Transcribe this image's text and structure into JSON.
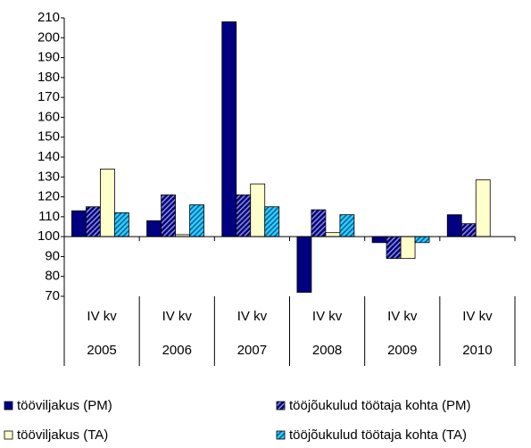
{
  "chart_data": {
    "type": "bar",
    "categories": [
      "IV kv",
      "IV kv",
      "IV kv",
      "IV kv",
      "IV kv",
      "IV kv"
    ],
    "groups": [
      "2005",
      "2006",
      "2007",
      "2008",
      "2009",
      "2010"
    ],
    "baseline": 100,
    "series": [
      {
        "name": "tööviljakus (PM)",
        "color": "#000080",
        "pattern": "solid",
        "values": [
          113,
          108,
          208,
          72,
          97,
          111
        ]
      },
      {
        "name": "tööjõukulud töötaja kohta (PM)",
        "color": "#000080",
        "pattern": "hatched",
        "values": [
          115,
          121,
          121,
          113.5,
          89,
          106.5
        ]
      },
      {
        "name": "tööviljakus (TA)",
        "color": "#ffffcc",
        "pattern": "solid",
        "values": [
          134,
          101,
          126.5,
          102,
          89,
          128.5
        ]
      },
      {
        "name": "tööjõukulud töötaja kohta (TA)",
        "color": "#33ccff",
        "pattern": "hatched",
        "values": [
          112,
          116,
          115,
          111,
          97,
          null
        ]
      }
    ],
    "ylim": [
      70,
      210
    ],
    "yticks": [
      70,
      80,
      90,
      100,
      110,
      120,
      130,
      140,
      150,
      160,
      170,
      180,
      190,
      200,
      210
    ]
  }
}
